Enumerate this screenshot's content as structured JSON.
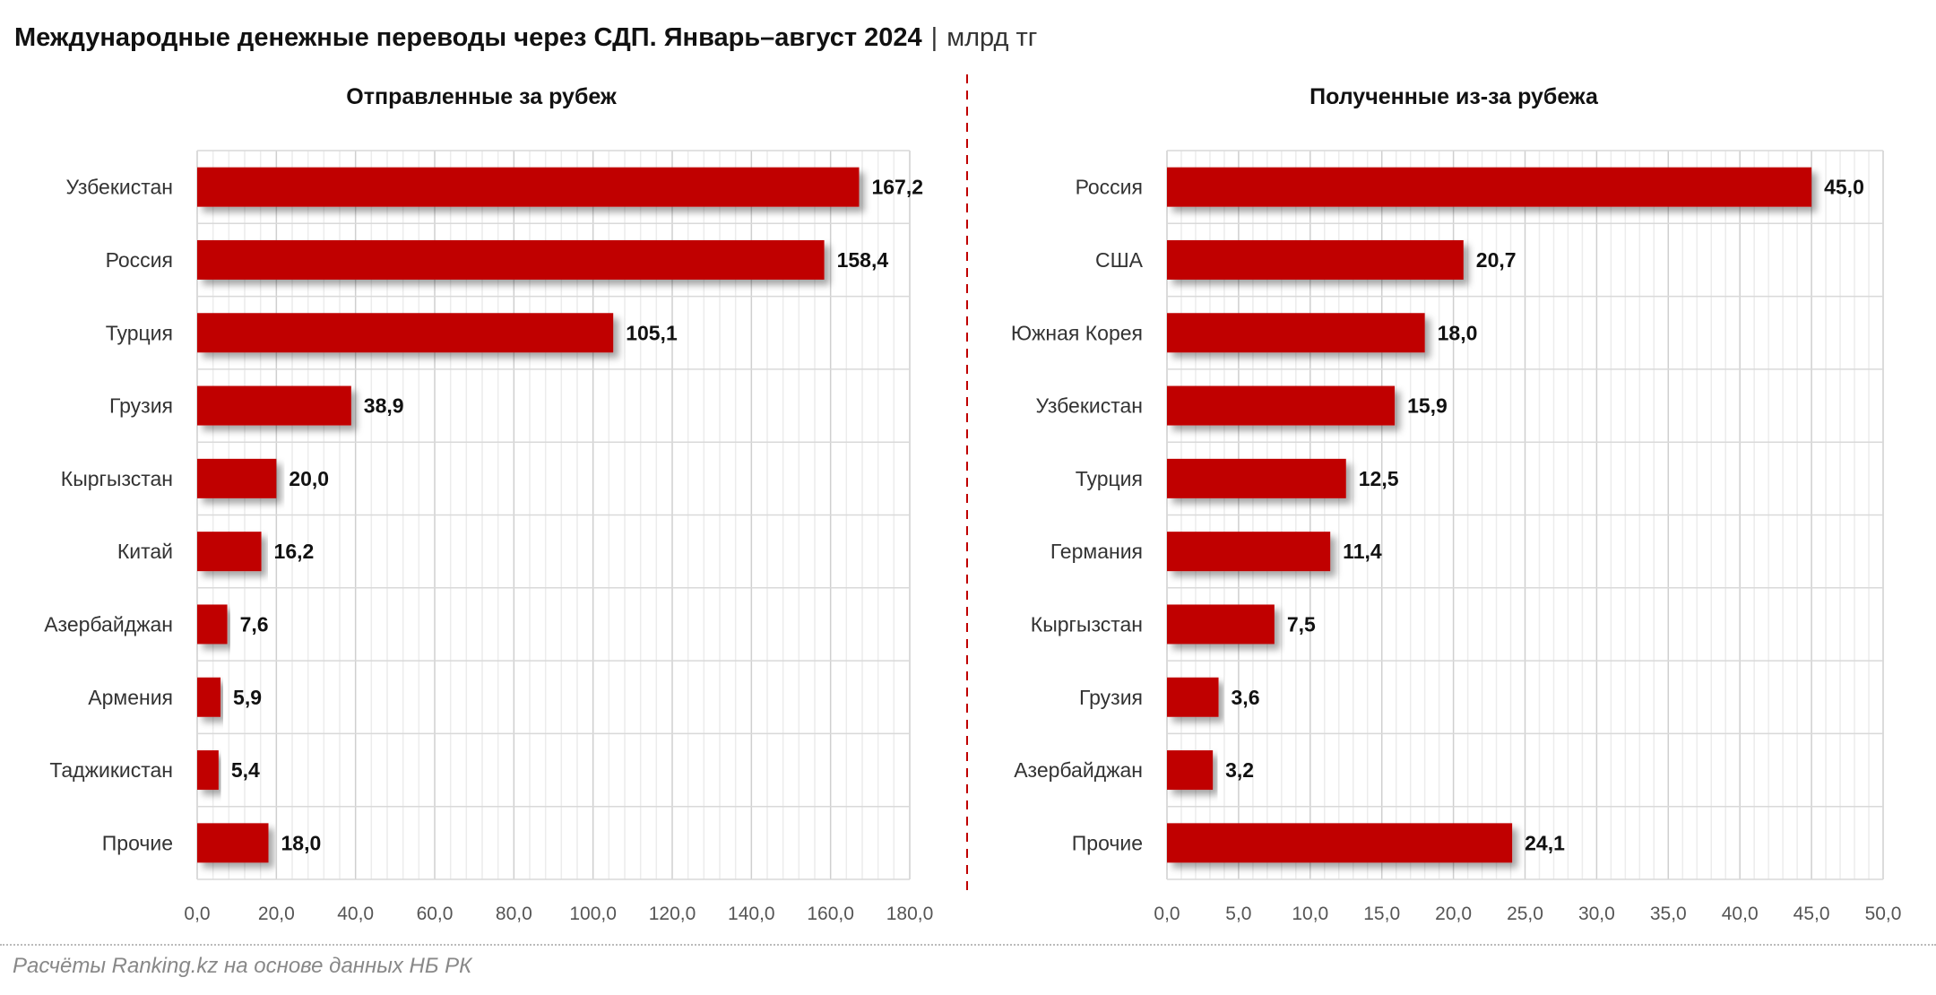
{
  "title": "Международные денежные переводы через СДП. Январь–август 2024",
  "title_separator": "|",
  "unit": "млрд тг",
  "footer": "Расчёты Ranking.kz на основе данных НБ РК",
  "colors": {
    "bar": "#C00000",
    "divider": "#C00000",
    "grid": "#d9d9d9"
  },
  "chart_data": [
    {
      "type": "bar",
      "orientation": "horizontal",
      "title": "Отправленные за рубеж",
      "categories": [
        "Узбекистан",
        "Россия",
        "Турция",
        "Грузия",
        "Кыргызстан",
        "Китай",
        "Азербайджан",
        "Армения",
        "Таджикистан",
        "Прочие"
      ],
      "values": [
        167.2,
        158.4,
        105.1,
        38.9,
        20.0,
        16.2,
        7.6,
        5.9,
        5.4,
        18.0
      ],
      "value_labels": [
        "167,2",
        "158,4",
        "105,1",
        "38,9",
        "20,0",
        "16,2",
        "7,6",
        "5,9",
        "5,4",
        "18,0"
      ],
      "xlim": [
        0,
        180
      ],
      "ticks": [
        "0,0",
        "20,0",
        "40,0",
        "60,0",
        "80,0",
        "100,0",
        "120,0",
        "140,0",
        "160,0",
        "180,0"
      ],
      "tick_step": 20,
      "minor_step": 4,
      "grid": true
    },
    {
      "type": "bar",
      "orientation": "horizontal",
      "title": "Полученные из-за рубежа",
      "categories": [
        "Россия",
        "США",
        "Южная Корея",
        "Узбекистан",
        "Турция",
        "Германия",
        "Кыргызстан",
        "Грузия",
        "Азербайджан",
        "Прочие"
      ],
      "values": [
        45.0,
        20.7,
        18.0,
        15.9,
        12.5,
        11.4,
        7.5,
        3.6,
        3.2,
        24.1
      ],
      "value_labels": [
        "45,0",
        "20,7",
        "18,0",
        "15,9",
        "12,5",
        "11,4",
        "7,5",
        "3,6",
        "3,2",
        "24,1"
      ],
      "xlim": [
        0,
        50
      ],
      "ticks": [
        "0,0",
        "5,0",
        "10,0",
        "15,0",
        "20,0",
        "25,0",
        "30,0",
        "35,0",
        "40,0",
        "45,0",
        "50,0"
      ],
      "tick_step": 5,
      "minor_step": 1,
      "grid": true
    }
  ]
}
